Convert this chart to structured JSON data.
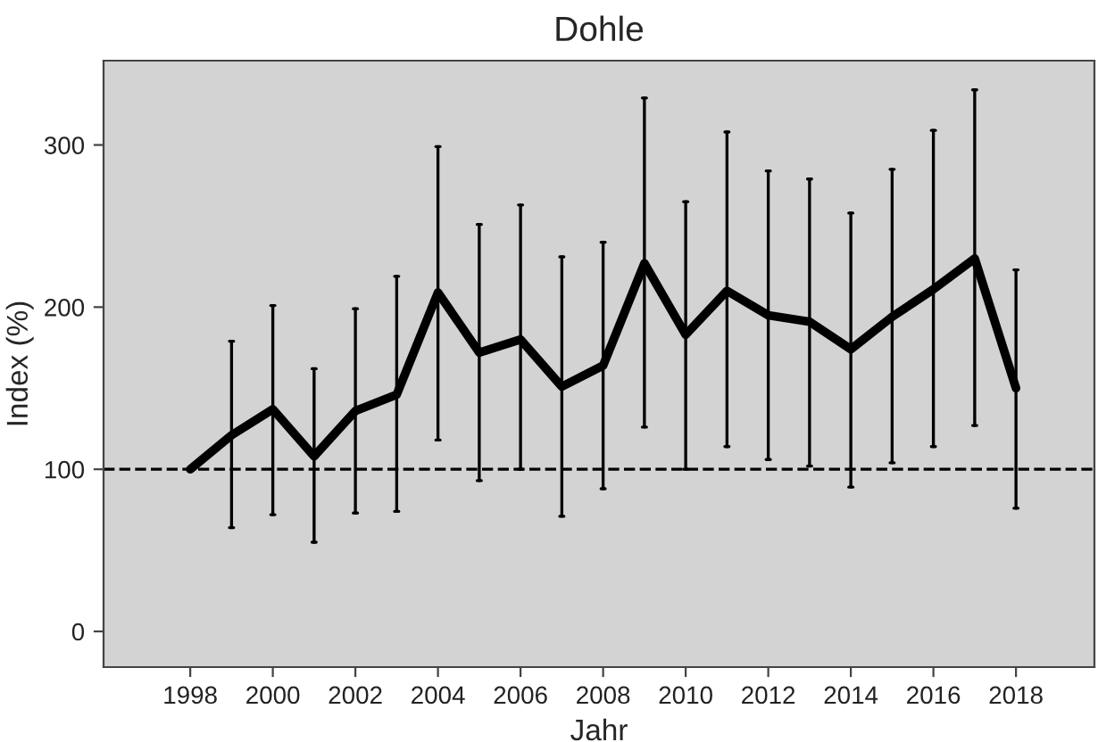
{
  "chart_data": {
    "type": "line",
    "title": "Dohle",
    "xlabel": "Jahr",
    "ylabel": "Index (%)",
    "x": [
      1998,
      1999,
      2000,
      2001,
      2002,
      2003,
      2004,
      2005,
      2006,
      2007,
      2008,
      2009,
      2010,
      2011,
      2012,
      2013,
      2014,
      2015,
      2016,
      2017,
      2018
    ],
    "series": [
      {
        "color": "#000000",
        "values": [
          100,
          121,
          137,
          108,
          136,
          146,
          209,
          172,
          180,
          151,
          164,
          227,
          183,
          210,
          195,
          191,
          174,
          194,
          211,
          230,
          150
        ],
        "errors": [
          null,
          [
            64,
            179
          ],
          [
            72,
            201
          ],
          [
            55,
            162
          ],
          [
            73,
            199
          ],
          [
            74,
            219
          ],
          [
            118,
            299
          ],
          [
            93,
            251
          ],
          [
            100,
            263
          ],
          [
            71,
            231
          ],
          [
            88,
            240
          ],
          [
            126,
            329
          ],
          [
            100,
            265
          ],
          [
            114,
            308
          ],
          [
            106,
            284
          ],
          [
            102,
            279
          ],
          [
            89,
            258
          ],
          [
            104,
            285
          ],
          [
            114,
            309
          ],
          [
            127,
            334
          ],
          [
            76,
            223
          ]
        ]
      }
    ],
    "xlim": [
      1995.9,
      2019.9
    ],
    "ylim": [
      -22,
      352
    ],
    "xticks": [
      1998,
      2000,
      2002,
      2004,
      2006,
      2008,
      2010,
      2012,
      2014,
      2016,
      2018
    ],
    "yticks": [
      0,
      100,
      200,
      300
    ],
    "ref_lines": [
      {
        "axis": "y",
        "value": 100,
        "line_style": "dashed",
        "color": "#000000"
      }
    ],
    "grid": false,
    "legend": false,
    "marker": "none",
    "line_style": "solid"
  }
}
